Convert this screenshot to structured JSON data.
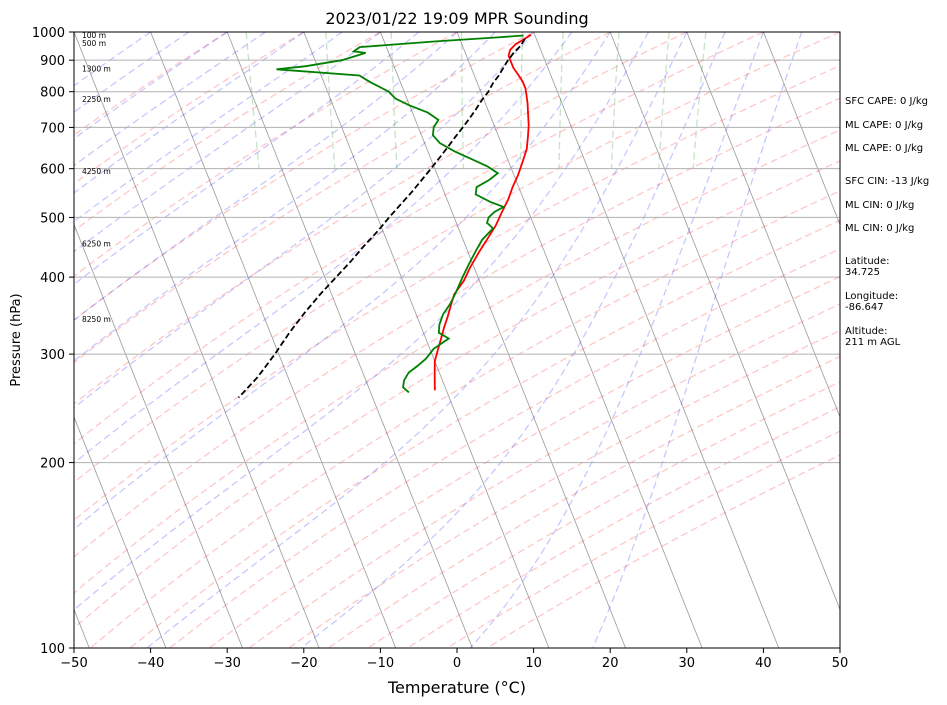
{
  "chart_data": {
    "type": "line",
    "title": "2023/01/22 19:09 MPR Sounding",
    "xlabel": "Temperature (°C)",
    "ylabel": "Pressure (hPa)",
    "xlim": [
      -50,
      50
    ],
    "ylim": [
      1000,
      100
    ],
    "y_scale": "log",
    "grid": true,
    "x_ticks": [
      "−50",
      "−40",
      "−30",
      "−20",
      "−10",
      "0",
      "10",
      "20",
      "30",
      "40",
      "50"
    ],
    "x_tick_values": [
      -50,
      -40,
      -30,
      -20,
      -10,
      0,
      10,
      20,
      30,
      40,
      50
    ],
    "y_ticks": [
      "100",
      "200",
      "300",
      "400",
      "500",
      "600",
      "700",
      "800",
      "900",
      "1000"
    ],
    "y_tick_values": [
      100,
      200,
      300,
      400,
      500,
      600,
      700,
      800,
      900,
      1000
    ],
    "series": [
      {
        "color": "#ff0000",
        "points": [
          [
            9.5,
            990
          ],
          [
            8.5,
            975
          ],
          [
            7.0,
            955
          ],
          [
            6.0,
            935
          ],
          [
            5.5,
            915
          ],
          [
            5.5,
            895
          ],
          [
            5.5,
            875
          ],
          [
            5.8,
            850
          ],
          [
            6.0,
            830
          ],
          [
            6.0,
            810
          ],
          [
            5.8,
            790
          ],
          [
            5.5,
            765
          ],
          [
            5.0,
            735
          ],
          [
            4.5,
            705
          ],
          [
            3.8,
            675
          ],
          [
            3.0,
            645
          ],
          [
            1.8,
            615
          ],
          [
            0.5,
            585
          ],
          [
            -0.8,
            560
          ],
          [
            -2.0,
            535
          ],
          [
            -3.5,
            510
          ],
          [
            -5.0,
            485
          ],
          [
            -6.5,
            465
          ],
          [
            -8.5,
            440
          ],
          [
            -10.5,
            415
          ],
          [
            -12.0,
            395
          ],
          [
            -14.0,
            375
          ],
          [
            -15.0,
            360
          ],
          [
            -16.0,
            345
          ],
          [
            -17.0,
            332
          ],
          [
            -18.0,
            318
          ],
          [
            -19.0,
            305
          ],
          [
            -20.0,
            292
          ],
          [
            -20.5,
            282
          ],
          [
            -21.0,
            272
          ],
          [
            -21.5,
            262
          ]
        ]
      },
      {
        "color": "#008000",
        "points": [
          [
            8.5,
            987
          ],
          [
            5.0,
            980
          ],
          [
            -3.5,
            965
          ],
          [
            -13.5,
            945
          ],
          [
            -14.5,
            930
          ],
          [
            -13.0,
            925
          ],
          [
            -16.5,
            900
          ],
          [
            -21.5,
            880
          ],
          [
            -25.5,
            870
          ],
          [
            -15.0,
            850
          ],
          [
            -14.0,
            830
          ],
          [
            -13.0,
            815
          ],
          [
            -12.0,
            800
          ],
          [
            -11.5,
            780
          ],
          [
            -10.0,
            760
          ],
          [
            -8.0,
            740
          ],
          [
            -7.0,
            720
          ],
          [
            -8.0,
            700
          ],
          [
            -8.5,
            680
          ],
          [
            -8.0,
            660
          ],
          [
            -6.5,
            640
          ],
          [
            -4.5,
            620
          ],
          [
            -3.0,
            605
          ],
          [
            -2.0,
            590
          ],
          [
            -3.5,
            575
          ],
          [
            -5.5,
            560
          ],
          [
            -6.0,
            545
          ],
          [
            -4.5,
            530
          ],
          [
            -3.0,
            520
          ],
          [
            -4.5,
            510
          ],
          [
            -5.5,
            500
          ],
          [
            -6.0,
            490
          ],
          [
            -5.5,
            480
          ],
          [
            -7.5,
            460
          ],
          [
            -9.0,
            440
          ],
          [
            -10.5,
            420
          ],
          [
            -12.0,
            400
          ],
          [
            -13.5,
            380
          ],
          [
            -15.0,
            362
          ],
          [
            -16.5,
            348
          ],
          [
            -17.5,
            335
          ],
          [
            -18.0,
            325
          ],
          [
            -17.0,
            318
          ],
          [
            -19.5,
            306
          ],
          [
            -21.0,
            295
          ],
          [
            -22.5,
            287
          ],
          [
            -24.0,
            280
          ],
          [
            -25.0,
            272
          ],
          [
            -25.5,
            265
          ],
          [
            -25.0,
            260
          ]
        ]
      },
      {
        "color": "#000000",
        "linestyle": "dashed",
        "points": [
          [
            8.5,
            975
          ],
          [
            7.6,
            950
          ],
          [
            6.3,
            925
          ],
          [
            5.2,
            900
          ],
          [
            4.2,
            875
          ],
          [
            3.2,
            850
          ],
          [
            2.0,
            825
          ],
          [
            1.0,
            800
          ],
          [
            -0.3,
            775
          ],
          [
            -1.5,
            750
          ],
          [
            -2.8,
            725
          ],
          [
            -4.2,
            700
          ],
          [
            -5.7,
            675
          ],
          [
            -7.2,
            650
          ],
          [
            -8.8,
            625
          ],
          [
            -10.5,
            600
          ],
          [
            -12.3,
            575
          ],
          [
            -14.2,
            550
          ],
          [
            -16.3,
            525
          ],
          [
            -18.5,
            500
          ],
          [
            -20.7,
            475
          ],
          [
            -23.2,
            450
          ],
          [
            -25.7,
            425
          ],
          [
            -28.5,
            400
          ],
          [
            -31.5,
            375
          ],
          [
            -34.5,
            350
          ],
          [
            -37.5,
            325
          ],
          [
            -40.5,
            300
          ],
          [
            -44.0,
            275
          ],
          [
            -47.5,
            255
          ]
        ]
      }
    ],
    "height_labels": [
      {
        "text": "100 m",
        "p": 985
      },
      {
        "text": "500 m",
        "p": 957
      },
      {
        "text": "1300 m",
        "p": 870
      },
      {
        "text": "2250 m",
        "p": 775
      },
      {
        "text": "4250 m",
        "p": 593
      },
      {
        "text": "6250 m",
        "p": 452
      },
      {
        "text": "8250 m",
        "p": 341
      }
    ],
    "annotations": [
      {
        "lines": [
          "SFC CAPE: 0 J/kg"
        ]
      },
      {
        "lines": [
          "ML CAPE: 0 J/kg"
        ]
      },
      {
        "lines": [
          "ML CAPE: 0 J/kg"
        ]
      },
      {
        "lines": [
          "SFC CIN: -13 J/kg"
        ]
      },
      {
        "lines": [
          "ML CIN: 0 J/kg"
        ]
      },
      {
        "lines": [
          "ML CIN: 0 J/kg"
        ]
      },
      {
        "lines": [
          "Latitude:",
          "34.725"
        ]
      },
      {
        "lines": [
          "Longitude:",
          "-86.647"
        ]
      },
      {
        "lines": [
          "Altitude:",
          "211 m AGL"
        ]
      }
    ],
    "colors": {
      "dry_adiabat": "#ff0000",
      "moist_adiabat": "#0000ff",
      "mixing_ratio": "#008000",
      "isotherm": "#808080"
    }
  }
}
